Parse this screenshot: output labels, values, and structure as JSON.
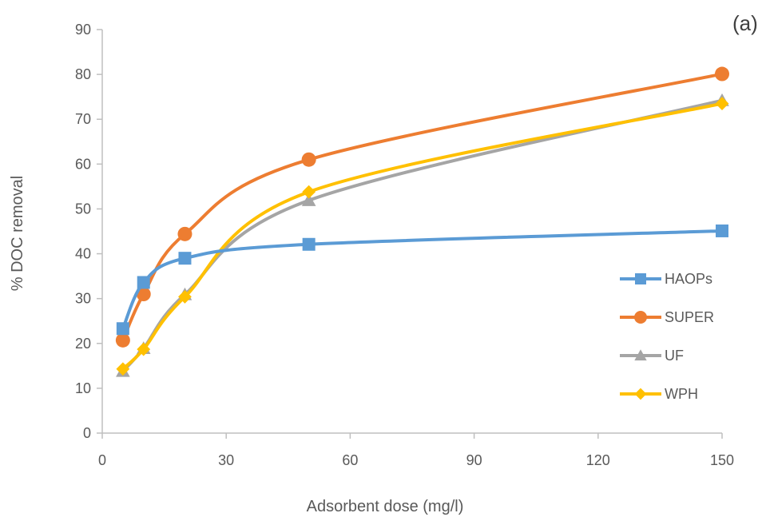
{
  "chart_data": {
    "type": "line",
    "panel_label": "(a)",
    "title": "",
    "xlabel": "Adsorbent dose (mg/l)",
    "ylabel": "% DOC removal",
    "xlim": [
      0,
      150
    ],
    "ylim": [
      0,
      90
    ],
    "xticks": [
      0,
      30,
      60,
      90,
      120,
      150
    ],
    "yticks": [
      0,
      10,
      20,
      30,
      40,
      50,
      60,
      70,
      80,
      90
    ],
    "grid": false,
    "legend_position": "right",
    "x": [
      5,
      10,
      20,
      50,
      150
    ],
    "series": [
      {
        "name": "HAOPs",
        "color": "#5B9BD5",
        "marker": "square",
        "values": [
          23.3,
          33.6,
          39.0,
          42.1,
          45.1
        ]
      },
      {
        "name": "SUPER",
        "color": "#ED7D31",
        "marker": "circle",
        "values": [
          20.7,
          31.0,
          44.4,
          61.0,
          80.1
        ]
      },
      {
        "name": "UF",
        "color": "#A5A5A5",
        "marker": "triangle",
        "values": [
          13.8,
          18.9,
          30.9,
          51.9,
          74.2
        ]
      },
      {
        "name": "WPH",
        "color": "#FFC000",
        "marker": "diamond",
        "values": [
          14.3,
          18.7,
          30.4,
          53.8,
          73.5
        ]
      }
    ]
  }
}
